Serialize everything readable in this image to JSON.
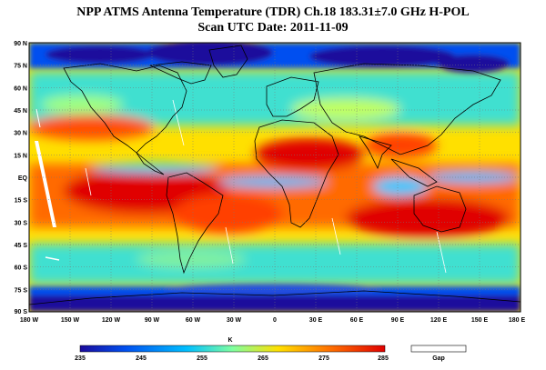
{
  "title": {
    "line1": "NPP ATMS Antenna Temperature (TDR) Ch.18 183.31±7.0 GHz H-POL",
    "line2": "Scan UTC Date:  2011-11-09"
  },
  "map": {
    "lat_labels": [
      "90 N",
      "75 N",
      "60 N",
      "45 N",
      "30 N",
      "15 N",
      "EQ",
      "15 S",
      "30 S",
      "45 S",
      "60 S",
      "75 S",
      "90 S"
    ],
    "lon_labels": [
      "180 W",
      "150 W",
      "120 W",
      "90 W",
      "60 W",
      "30 W",
      "0",
      "30 E",
      "60 E",
      "90 E",
      "120 E",
      "150 E",
      "180 E"
    ],
    "field": "brightness temperature (K), cold/dry blue at poles and deep convection, warm/moist red in subtropics",
    "grid": "dotted graticule every 15 degrees",
    "colors": {
      "land_outline": "#000000",
      "grid": "#777777"
    }
  },
  "colorbar": {
    "unit": "K",
    "tick_labels": [
      "235",
      "245",
      "255",
      "265",
      "275",
      "285"
    ],
    "min": 235,
    "max": 285,
    "colors": [
      "#1a0a9c",
      "#0050f0",
      "#00bfff",
      "#7fffa0",
      "#ffe000",
      "#ff7000",
      "#e00000"
    ]
  },
  "gap_legend": {
    "label": "Gap",
    "color": "#ffffff"
  }
}
